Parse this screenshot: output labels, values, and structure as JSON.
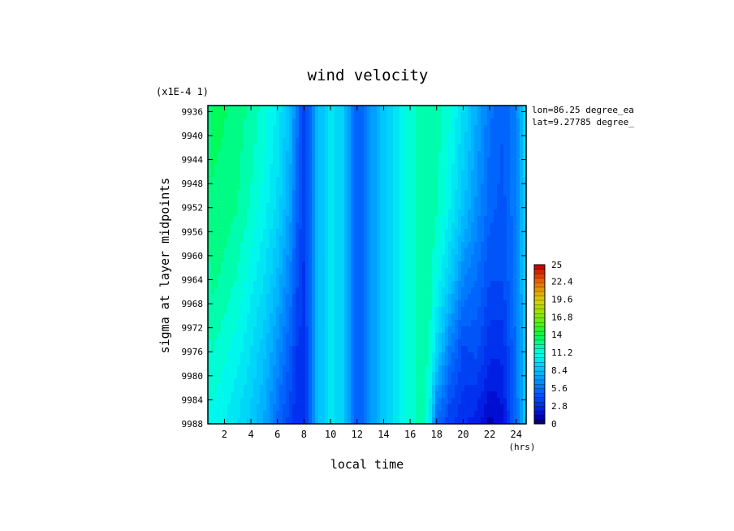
{
  "chart_data": {
    "type": "heatmap",
    "title": "wind velocity",
    "xlabel": "local time",
    "xunit": "(hrs)",
    "ylabel": "sigma at layer midpoints",
    "yscale_note": "(x1E-4 1)",
    "info_lines": [
      "lon=86.25 degree_ea",
      "lat=9.27785 degree_"
    ],
    "x_ticks": [
      2,
      4,
      6,
      8,
      10,
      12,
      14,
      16,
      18,
      20,
      22,
      24
    ],
    "xlim": [
      0.75,
      24.75
    ],
    "y_ticks": [
      9936,
      9940,
      9944,
      9948,
      9952,
      9956,
      9960,
      9964,
      9968,
      9972,
      9976,
      9980,
      9984,
      9988
    ],
    "ylim": [
      9935,
      9988
    ],
    "colorbar": {
      "ticks": [
        "25",
        "22.4",
        "19.6",
        "16.8",
        "14",
        "11.2",
        "8.4",
        "5.6",
        "2.8",
        "0"
      ],
      "range": [
        0,
        25
      ]
    },
    "x": [
      0.75,
      1,
      2,
      3,
      4,
      5,
      6,
      7,
      7.5,
      8,
      8.5,
      9,
      10,
      11,
      11.5,
      12,
      12.5,
      13,
      14,
      15,
      16,
      17,
      17.5,
      18,
      19,
      20,
      21,
      22,
      23,
      24,
      24.75
    ],
    "levels": [
      9988,
      9976,
      9964,
      9952,
      9935
    ],
    "values": [
      [
        10.8,
        11.0,
        10.5,
        9.8,
        8.8,
        7.6,
        5.4,
        3.6,
        2.8,
        3.2,
        5.4,
        8.2,
        10.2,
        9.0,
        6.6,
        5.0,
        5.6,
        7.0,
        8.8,
        10.4,
        11.6,
        12.4,
        10.0,
        5.4,
        3.6,
        3.0,
        2.4,
        1.2,
        1.8,
        5.6,
        9.0
      ],
      [
        11.5,
        12.0,
        11.4,
        10.8,
        9.8,
        8.6,
        6.8,
        4.8,
        3.4,
        3.2,
        5.4,
        8.2,
        10.2,
        9.0,
        6.6,
        5.0,
        5.6,
        7.0,
        8.8,
        10.4,
        11.6,
        12.4,
        11.8,
        9.4,
        6.0,
        4.0,
        4.4,
        3.0,
        3.0,
        5.8,
        9.2
      ],
      [
        12.2,
        12.8,
        12.4,
        11.8,
        10.8,
        9.8,
        8.2,
        6.0,
        4.2,
        3.4,
        5.4,
        8.2,
        10.2,
        9.0,
        6.6,
        5.0,
        5.6,
        7.0,
        8.8,
        10.4,
        11.6,
        12.4,
        12.2,
        11.2,
        9.0,
        6.4,
        5.6,
        4.2,
        4.2,
        6.0,
        9.4
      ],
      [
        12.6,
        13.2,
        13.0,
        12.6,
        11.8,
        10.8,
        9.6,
        7.2,
        5.0,
        3.6,
        5.4,
        8.2,
        10.2,
        9.0,
        6.6,
        5.0,
        5.6,
        7.0,
        8.8,
        10.4,
        11.6,
        12.4,
        12.4,
        12.0,
        10.6,
        8.6,
        6.8,
        5.2,
        4.6,
        6.2,
        9.6
      ],
      [
        13.0,
        13.6,
        13.4,
        13.0,
        12.4,
        11.6,
        10.4,
        8.4,
        5.8,
        3.8,
        5.4,
        8.2,
        10.2,
        9.0,
        6.6,
        5.0,
        5.6,
        7.0,
        8.8,
        10.4,
        11.6,
        12.4,
        12.6,
        12.4,
        11.4,
        9.8,
        7.8,
        5.8,
        5.0,
        6.4,
        9.8
      ]
    ]
  }
}
